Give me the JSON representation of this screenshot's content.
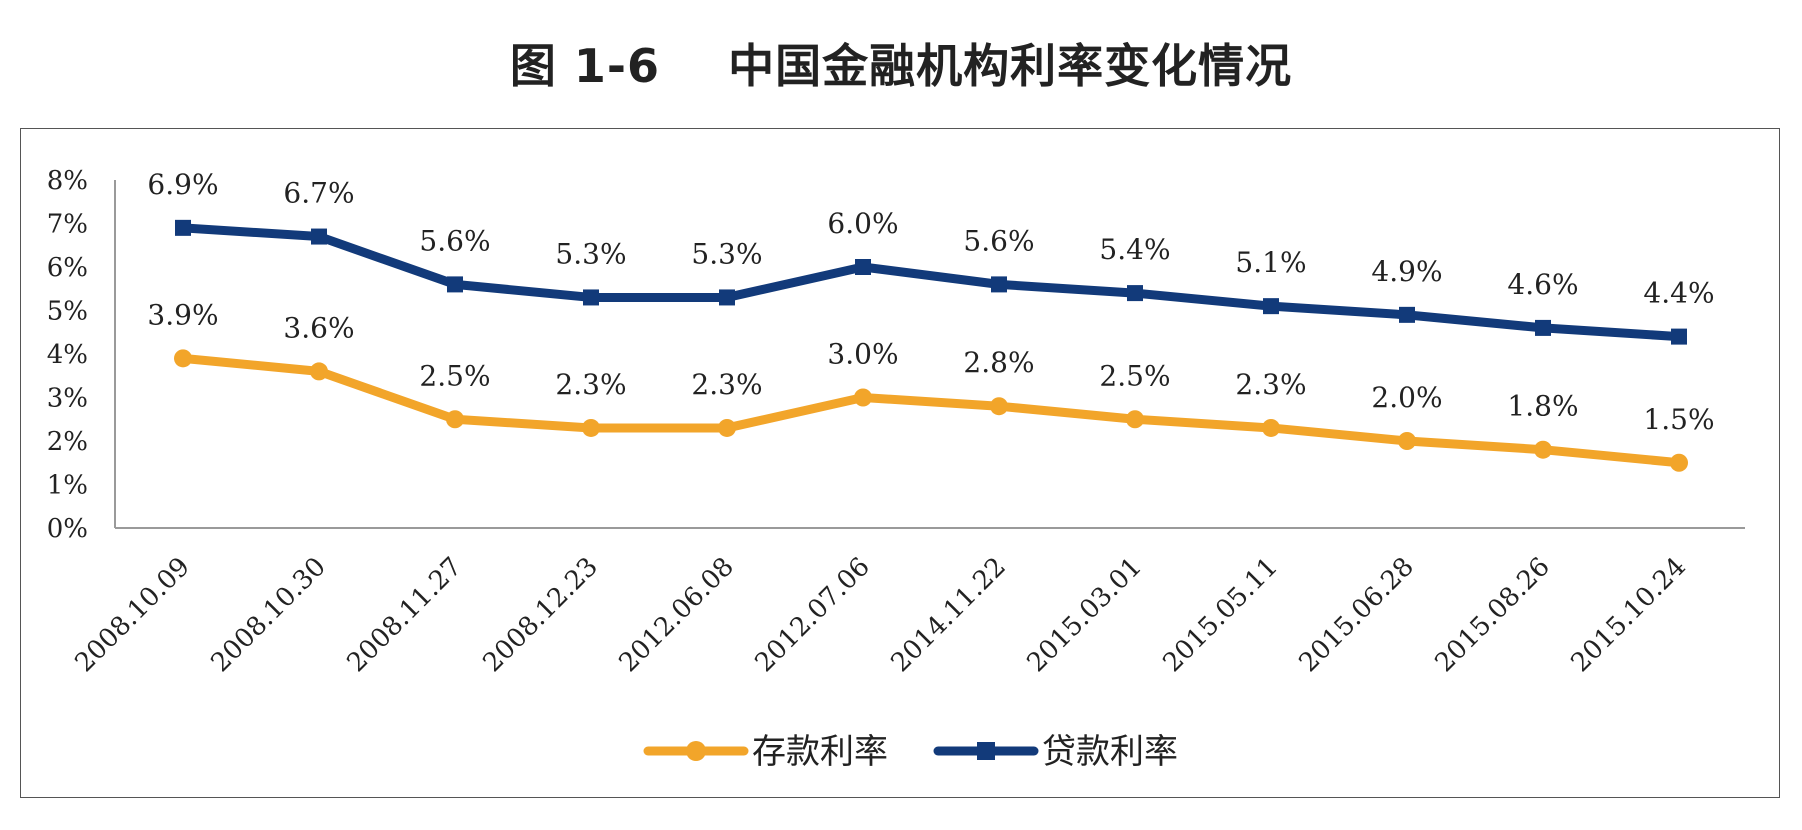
{
  "chart_data": {
    "type": "line",
    "title": "图 1-6    中国金融机构利率变化情况",
    "categories": [
      "2008.10.09",
      "2008.10.30",
      "2008.11.27",
      "2008.12.23",
      "2012.06.08",
      "2012.07.06",
      "2014.11.22",
      "2015.03.01",
      "2015.05.11",
      "2015.06.28",
      "2015.08.26",
      "2015.10.24"
    ],
    "series": [
      {
        "name": "存款利率",
        "color": "#F2A52A",
        "marker": "circle",
        "values": [
          3.9,
          3.6,
          2.5,
          2.3,
          2.3,
          3.0,
          2.8,
          2.5,
          2.3,
          2.0,
          1.8,
          1.5
        ],
        "labels": [
          "3.9%",
          "3.6%",
          "2.5%",
          "2.3%",
          "2.3%",
          "3.0%",
          "2.8%",
          "2.5%",
          "2.3%",
          "2.0%",
          "1.8%",
          "1.5%"
        ]
      },
      {
        "name": "贷款利率",
        "color": "#123A7A",
        "marker": "square",
        "values": [
          6.9,
          6.7,
          5.6,
          5.3,
          5.3,
          6.0,
          5.6,
          5.4,
          5.1,
          4.9,
          4.6,
          4.4
        ],
        "labels": [
          "6.9%",
          "6.7%",
          "5.6%",
          "5.3%",
          "5.3%",
          "6.0%",
          "5.6%",
          "5.4%",
          "5.1%",
          "4.9%",
          "4.6%",
          "4.4%"
        ]
      }
    ],
    "ylim": [
      0,
      8
    ],
    "yticks": [
      "0%",
      "1%",
      "2%",
      "3%",
      "4%",
      "5%",
      "6%",
      "7%",
      "8%"
    ],
    "xlabel": "",
    "ylabel": "",
    "legend": "bottom-center",
    "grid": false
  }
}
